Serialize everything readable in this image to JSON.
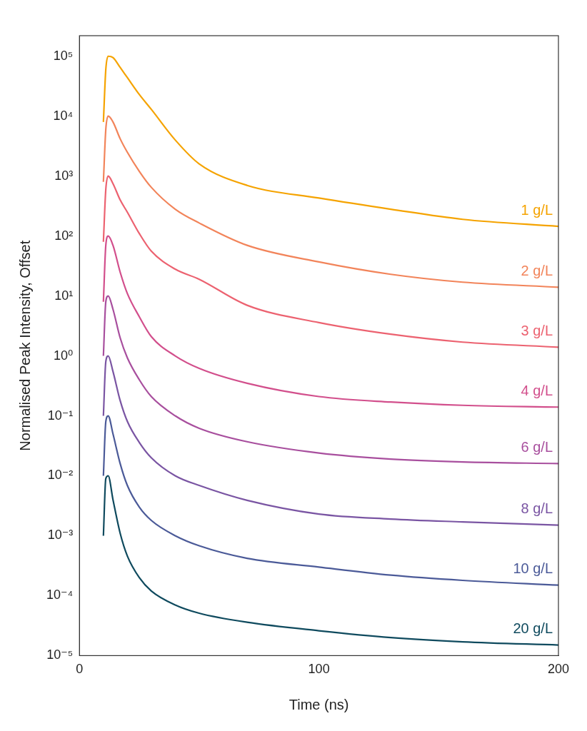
{
  "chart_data": {
    "type": "line",
    "x_label": "Time (ns)",
    "y_label": "Normalised Peak Intensity, Offset",
    "log": "y",
    "grid": false,
    "marker": "none",
    "line_style": "solid",
    "xlim": [
      0,
      200
    ],
    "xticks": [
      0,
      100,
      200
    ],
    "ylim": [
      1e-05,
      220000
    ],
    "yticks": [
      {
        "value": 1e-05,
        "label": "10⁻⁵"
      },
      {
        "value": 0.0001,
        "label": "10⁻⁴"
      },
      {
        "value": 0.001,
        "label": "10⁻³"
      },
      {
        "value": 0.01,
        "label": "10⁻²"
      },
      {
        "value": 0.1,
        "label": "10⁻¹"
      },
      {
        "value": 1,
        "label": "10⁰"
      },
      {
        "value": 10,
        "label": "10¹"
      },
      {
        "value": 100,
        "label": "10²"
      },
      {
        "value": 1000,
        "label": "10³"
      },
      {
        "value": 10000,
        "label": "10⁴"
      },
      {
        "value": 100000,
        "label": "10⁵"
      }
    ],
    "x": [
      10,
      11,
      12,
      14,
      17,
      20,
      25,
      30,
      40,
      50,
      70,
      100,
      130,
      160,
      200
    ],
    "series": [
      {
        "name": "1 g/L",
        "color": "#f5a300",
        "values": [
          8000,
          60000,
          100000,
          95000,
          65000,
          44000,
          23000,
          13000,
          4000,
          1600,
          700,
          430,
          280,
          190,
          145
        ]
      },
      {
        "name": "2 g/L",
        "color": "#f2845a",
        "values": [
          800,
          6000,
          10000,
          8000,
          4200,
          2500,
          1200,
          650,
          280,
          165,
          70,
          37,
          23,
          17,
          14
        ]
      },
      {
        "name": "3 g/L",
        "color": "#ec6270",
        "values": [
          80,
          600,
          1000,
          750,
          400,
          250,
          110,
          56,
          28,
          19,
          7,
          3.6,
          2.3,
          1.7,
          1.4
        ]
      },
      {
        "name": "4 g/L",
        "color": "#d24f8c",
        "values": [
          8,
          70,
          100,
          70,
          25,
          11,
          4.5,
          2.1,
          1.0,
          0.62,
          0.35,
          0.21,
          0.17,
          0.15,
          0.14
        ]
      },
      {
        "name": "6 g/L",
        "color": "#a84f9e",
        "values": [
          1,
          8,
          10,
          6,
          2,
          0.93,
          0.4,
          0.21,
          0.1,
          0.062,
          0.037,
          0.024,
          0.019,
          0.017,
          0.016
        ]
      },
      {
        "name": "8 g/L",
        "color": "#7a55a3",
        "values": [
          0.1,
          0.8,
          1,
          0.55,
          0.18,
          0.081,
          0.036,
          0.02,
          0.01,
          0.0069,
          0.0039,
          0.0023,
          0.0019,
          0.0017,
          0.0015
        ]
      },
      {
        "name": "10 g/L",
        "color": "#4b5a98",
        "values": [
          0.01,
          0.08,
          0.1,
          0.05,
          0.016,
          0.0069,
          0.003,
          0.0018,
          0.001,
          0.00068,
          0.00042,
          0.0003,
          0.00022,
          0.00018,
          0.00015
        ]
      },
      {
        "name": "20 g/L",
        "color": "#0f4a5e",
        "values": [
          0.001,
          0.009,
          0.01,
          0.004,
          0.0011,
          0.00046,
          0.0002,
          0.00012,
          7e-05,
          5.1e-05,
          3.6e-05,
          2.6e-05,
          2e-05,
          1.7e-05,
          1.5e-05
        ]
      }
    ]
  }
}
